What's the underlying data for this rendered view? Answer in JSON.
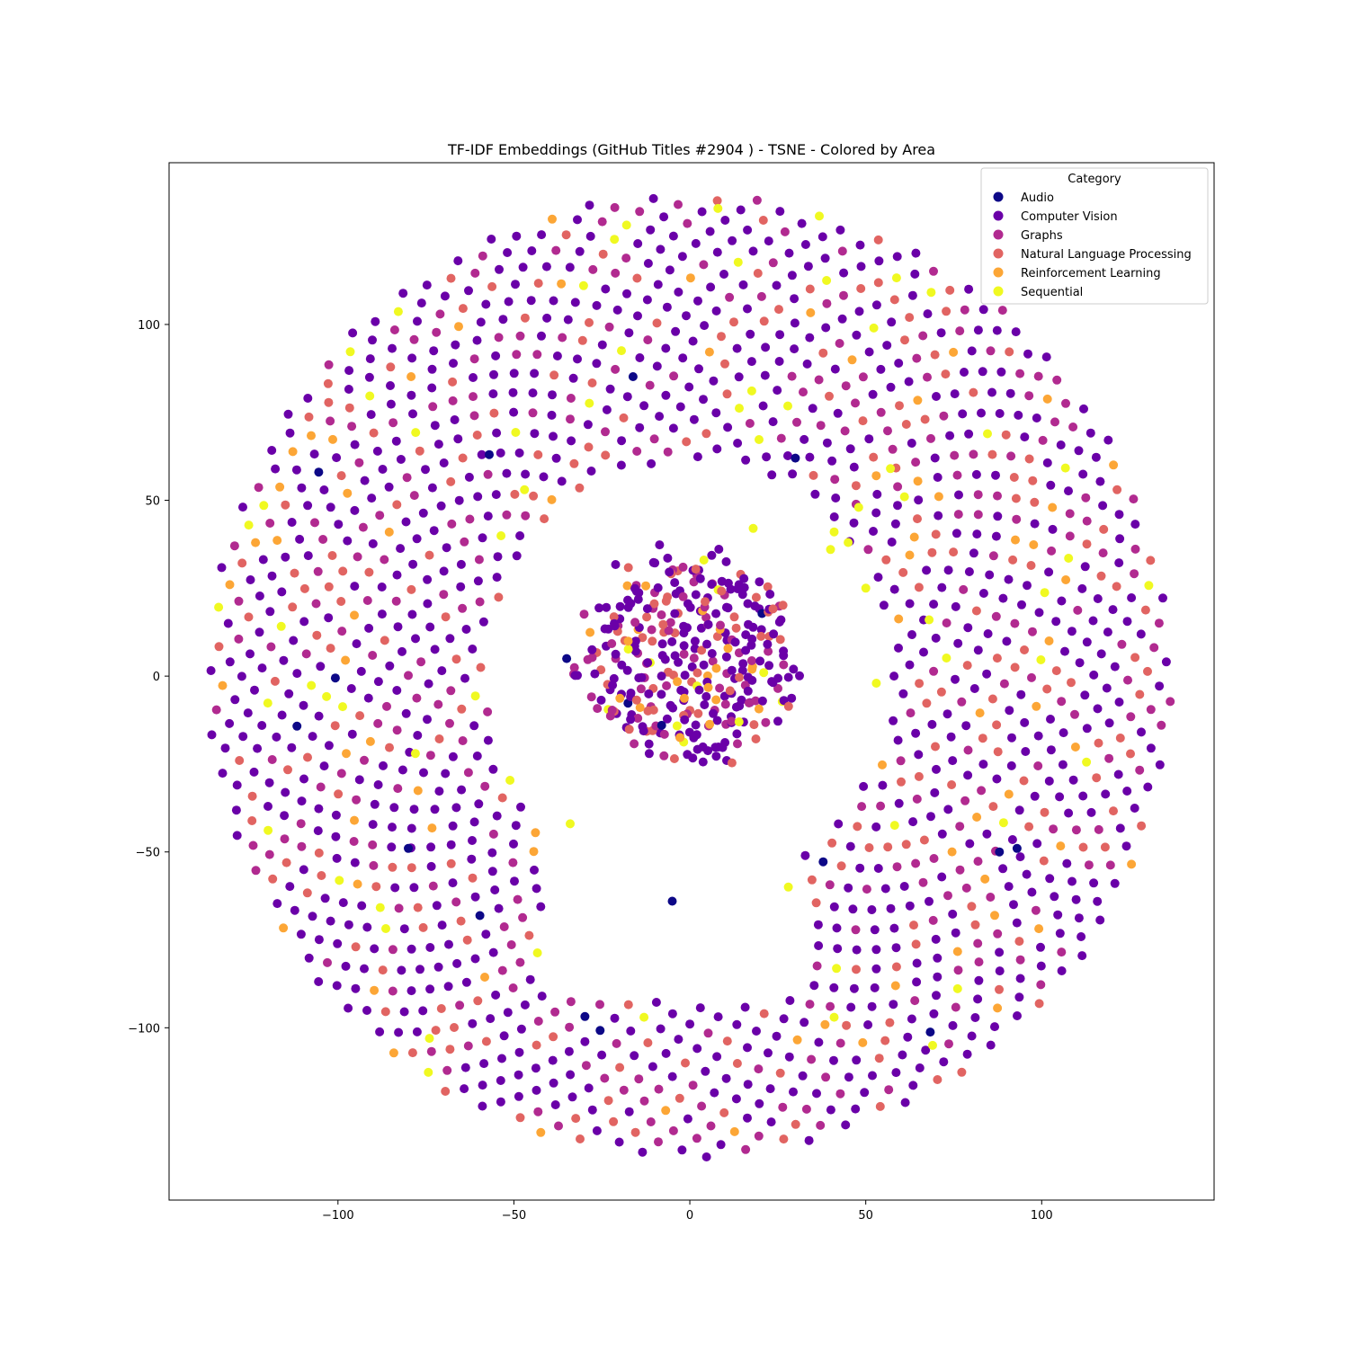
{
  "chart_data": {
    "type": "scatter",
    "title": "TF-IDF Embeddings (GitHub Titles #2904 ) - TSNE - Colored by Area",
    "xlabel": "",
    "ylabel": "",
    "xlim": [
      -148,
      149
    ],
    "ylim": [
      -149,
      146
    ],
    "x_ticks": [
      -100,
      -50,
      0,
      50,
      100
    ],
    "y_ticks": [
      -100,
      -50,
      0,
      50,
      100
    ],
    "x_tick_labels": [
      "−100",
      "−50",
      "0",
      "50",
      "100"
    ],
    "y_tick_labels": [
      "−100",
      "−50",
      "0",
      "50",
      "100"
    ],
    "grid": false,
    "legend": {
      "title": "Category",
      "placement": "top-right",
      "entries": [
        {
          "name": "Audio",
          "color": "#0d0887"
        },
        {
          "name": "Computer Vision",
          "color": "#6a00a8"
        },
        {
          "name": "Graphs",
          "color": "#b12a90"
        },
        {
          "name": "Natural Language Processing",
          "color": "#e16462"
        },
        {
          "name": "Reinforcement Learning",
          "color": "#fca636"
        },
        {
          "name": "Sequential",
          "color": "#f0f921"
        }
      ]
    },
    "structure": {
      "outer_ring_radius_range": [
        58,
        137
      ],
      "inner_cluster_radius": 30,
      "inner_cluster_center": [
        0,
        5
      ],
      "gap_center": [
        -5,
        -64
      ]
    },
    "category_mix": {
      "Audio": 0.006,
      "Computer Vision": 0.56,
      "Graphs": 0.2,
      "Natural Language Processing": 0.15,
      "Reinforcement Learning": 0.055,
      "Sequential": 0.029
    },
    "highlight_points": [
      {
        "x": -57,
        "y": 63,
        "category": "Audio"
      },
      {
        "x": 30,
        "y": 62,
        "category": "Audio"
      },
      {
        "x": -80,
        "y": -49,
        "category": "Audio"
      },
      {
        "x": 88,
        "y": -50,
        "category": "Audio"
      },
      {
        "x": 93,
        "y": -49,
        "category": "Audio"
      },
      {
        "x": -35,
        "y": 5,
        "category": "Audio"
      },
      {
        "x": -8,
        "y": -14,
        "category": "Audio"
      },
      {
        "x": -5,
        "y": -64,
        "category": "Audio"
      },
      {
        "x": 8,
        "y": 133,
        "category": "Sequential"
      },
      {
        "x": -47,
        "y": 53,
        "category": "Sequential"
      },
      {
        "x": 18,
        "y": 42,
        "category": "Sequential"
      },
      {
        "x": 57,
        "y": 59,
        "category": "Sequential"
      },
      {
        "x": 61,
        "y": 51,
        "category": "Sequential"
      },
      {
        "x": 48,
        "y": 48,
        "category": "Sequential"
      },
      {
        "x": 41,
        "y": 41,
        "category": "Sequential"
      },
      {
        "x": 45,
        "y": 38,
        "category": "Sequential"
      },
      {
        "x": 40,
        "y": 36,
        "category": "Sequential"
      },
      {
        "x": 50,
        "y": 25,
        "category": "Sequential"
      },
      {
        "x": 53,
        "y": -2,
        "category": "Sequential"
      },
      {
        "x": -78,
        "y": -22,
        "category": "Sequential"
      },
      {
        "x": -34,
        "y": -42,
        "category": "Sequential"
      },
      {
        "x": 28,
        "y": -60,
        "category": "Sequential"
      },
      {
        "x": 14,
        "y": -13,
        "category": "Sequential"
      },
      {
        "x": 21,
        "y": 1,
        "category": "Sequential"
      },
      {
        "x": -74,
        "y": -103,
        "category": "Sequential"
      },
      {
        "x": 41,
        "y": -97,
        "category": "Sequential"
      },
      {
        "x": 69,
        "y": -105,
        "category": "Sequential"
      },
      {
        "x": 68,
        "y": 16,
        "category": "Sequential"
      },
      {
        "x": 4,
        "y": 33,
        "category": "Sequential"
      }
    ]
  }
}
